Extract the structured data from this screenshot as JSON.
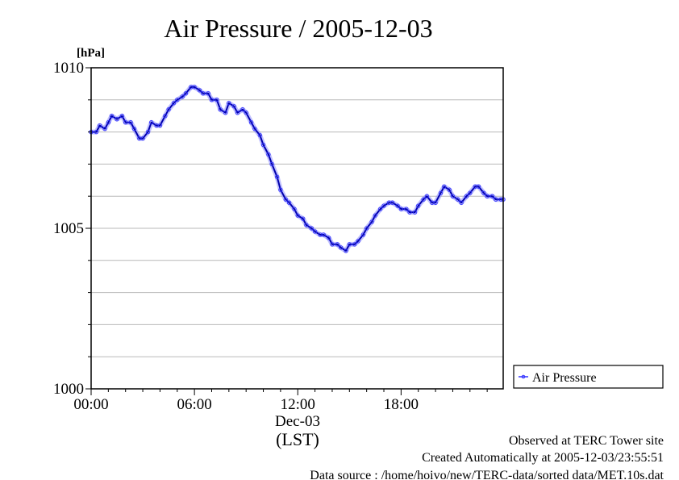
{
  "chart_data": {
    "type": "line",
    "title": "Air Pressure / 2005-12-03",
    "ylabel_unit": "[hPa]",
    "xlabel_date": "Dec-03",
    "xlabel_zone": "(LST)",
    "x_unit": "hours",
    "x_ticks": [
      {
        "value": 0,
        "label": "00:00"
      },
      {
        "value": 6,
        "label": "06:00"
      },
      {
        "value": 12,
        "label": "12:00"
      },
      {
        "value": 18,
        "label": "18:00"
      }
    ],
    "y_ticks": [
      {
        "value": 1000,
        "label": "1000"
      },
      {
        "value": 1005,
        "label": "1005"
      },
      {
        "value": 1010,
        "label": "1010"
      }
    ],
    "xlim": [
      0,
      23.93
    ],
    "ylim": [
      1000,
      1010
    ],
    "y_gridlines": [
      1001,
      1002,
      1003,
      1004,
      1005,
      1006,
      1007,
      1008,
      1009
    ],
    "legend_position": "right",
    "series": [
      {
        "name": "Air Pressure",
        "color": "#3333ff",
        "x": [
          0,
          0.3,
          0.5,
          0.8,
          1.0,
          1.2,
          1.5,
          1.8,
          2.0,
          2.3,
          2.5,
          2.8,
          3.0,
          3.3,
          3.5,
          3.8,
          4.0,
          4.3,
          4.5,
          4.8,
          5.0,
          5.3,
          5.5,
          5.8,
          6.0,
          6.3,
          6.5,
          6.8,
          7.0,
          7.3,
          7.5,
          7.8,
          8.0,
          8.3,
          8.5,
          8.8,
          9.0,
          9.3,
          9.5,
          9.8,
          10.0,
          10.3,
          10.5,
          10.8,
          11.0,
          11.3,
          11.5,
          11.8,
          12.0,
          12.3,
          12.5,
          12.8,
          13.0,
          13.3,
          13.5,
          13.8,
          14.0,
          14.3,
          14.5,
          14.8,
          15.0,
          15.3,
          15.5,
          15.8,
          16.0,
          16.3,
          16.5,
          16.8,
          17.0,
          17.3,
          17.5,
          17.8,
          18.0,
          18.3,
          18.5,
          18.8,
          19.0,
          19.3,
          19.5,
          19.8,
          20.0,
          20.3,
          20.5,
          20.8,
          21.0,
          21.3,
          21.5,
          21.8,
          22.0,
          22.3,
          22.5,
          22.8,
          23.0,
          23.3,
          23.5,
          23.8,
          23.93
        ],
        "y": [
          1008.0,
          1008.0,
          1008.2,
          1008.1,
          1008.3,
          1008.5,
          1008.4,
          1008.5,
          1008.3,
          1008.3,
          1008.1,
          1007.8,
          1007.8,
          1008.0,
          1008.3,
          1008.2,
          1008.2,
          1008.5,
          1008.7,
          1008.9,
          1009.0,
          1009.1,
          1009.2,
          1009.4,
          1009.4,
          1009.3,
          1009.2,
          1009.2,
          1009.0,
          1009.0,
          1008.7,
          1008.6,
          1008.9,
          1008.8,
          1008.6,
          1008.7,
          1008.6,
          1008.3,
          1008.1,
          1007.9,
          1007.6,
          1007.3,
          1007.0,
          1006.6,
          1006.2,
          1005.9,
          1005.8,
          1005.6,
          1005.4,
          1005.3,
          1005.1,
          1005.0,
          1004.9,
          1004.8,
          1004.8,
          1004.7,
          1004.5,
          1004.5,
          1004.4,
          1004.3,
          1004.5,
          1004.5,
          1004.6,
          1004.8,
          1005.0,
          1005.2,
          1005.4,
          1005.6,
          1005.7,
          1005.8,
          1005.8,
          1005.7,
          1005.6,
          1005.6,
          1005.5,
          1005.5,
          1005.7,
          1005.9,
          1006.0,
          1005.8,
          1005.8,
          1006.1,
          1006.3,
          1006.2,
          1006.0,
          1005.9,
          1005.8,
          1006.0,
          1006.1,
          1006.3,
          1006.3,
          1006.1,
          1006.0,
          1006.0,
          1005.9,
          1005.9,
          1005.9
        ]
      }
    ]
  },
  "footer": {
    "observed": "Observed at TERC Tower site",
    "created": "Created Automatically at 2005-12-03/23:55:51",
    "source": "Data source : /home/hoivo/new/TERC-data/sorted  data/MET.10s.dat"
  }
}
